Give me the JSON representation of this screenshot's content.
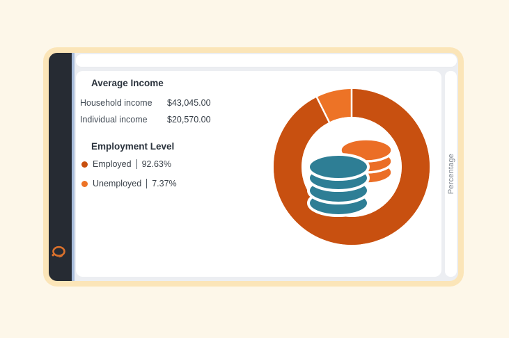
{
  "window": {
    "background": "#fdf7e9",
    "frame_color": "#fbe5b8"
  },
  "sidebar": {
    "color": "#262b33",
    "accent_color": "#a9bddb",
    "logo": "chat-bubble-logo"
  },
  "panel": {
    "income": {
      "title": "Average Income",
      "rows": [
        {
          "label": "Household income",
          "value": "$43,045.00"
        },
        {
          "label": "Individual income",
          "value": "$20,570.00"
        }
      ]
    },
    "employment": {
      "title": "Employment Level",
      "legend": [
        {
          "label": "Employed",
          "value": "92.63%",
          "color": "#c85010"
        },
        {
          "label": "Unemployed",
          "value": "7.37%",
          "color": "#ed7326"
        }
      ]
    }
  },
  "axis": {
    "right_label": "Percentage"
  },
  "chart_data": {
    "type": "pie",
    "subtype": "donut",
    "title": "Employment Level",
    "categories": [
      "Employed",
      "Unemployed"
    ],
    "values": [
      92.63,
      7.37
    ],
    "unit": "%",
    "colors": [
      "#c85010",
      "#ed7326"
    ],
    "start_angle": "top",
    "direction": "clockwise",
    "axis_label": "Percentage",
    "legend_position": "left-panel",
    "center_icon": "coins-icon",
    "center_icon_colors": {
      "front_stack": "#2e7e95",
      "back_stack": "#eb6e26"
    }
  }
}
